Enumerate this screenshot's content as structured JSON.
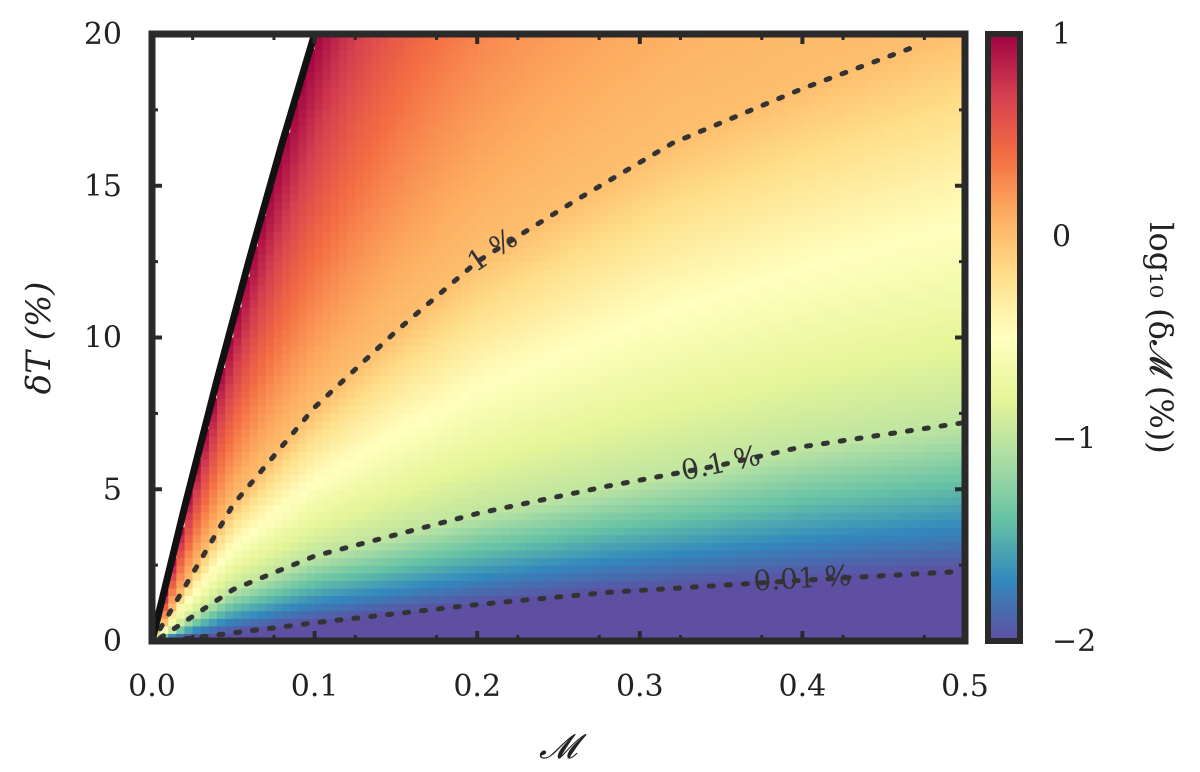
{
  "chart_data": {
    "type": "heatmap",
    "title": "",
    "xlabel": "𝓜",
    "ylabel": "δT    (%)",
    "xlim": [
      0.0,
      0.5
    ],
    "ylim": [
      0,
      20
    ],
    "x_ticks": [
      "0.0",
      "0.1",
      "0.2",
      "0.3",
      "0.4",
      "0.5"
    ],
    "x_tick_values": [
      0.0,
      0.1,
      0.2,
      0.3,
      0.4,
      0.5
    ],
    "y_ticks": [
      "0",
      "5",
      "10",
      "15",
      "20"
    ],
    "y_tick_values": [
      0,
      5,
      10,
      15,
      20
    ],
    "colorbar": {
      "label": "log₁₀ (δ𝓜 (%))",
      "range": [
        -2,
        1
      ],
      "ticks": [
        "−2",
        "−1",
        "0",
        "1"
      ],
      "tick_values": [
        -2,
        -1,
        0,
        1
      ],
      "colormap": "Spectral_r",
      "colors": [
        "#5e4fa2",
        "#3288bd",
        "#66c2a5",
        "#abdda4",
        "#e6f598",
        "#ffffbf",
        "#fee08b",
        "#fdae61",
        "#f46d43",
        "#d53e4f",
        "#9e0142"
      ]
    },
    "contours": [
      {
        "label": "1 %",
        "level": 0,
        "points": [
          [
            0.005,
            0.4
          ],
          [
            0.05,
            4.5
          ],
          [
            0.1,
            7.7
          ],
          [
            0.15,
            10.2
          ],
          [
            0.2,
            12.5
          ],
          [
            0.26,
            14.5
          ],
          [
            0.32,
            16.4
          ],
          [
            0.4,
            18.2
          ],
          [
            0.47,
            19.6
          ]
        ]
      },
      {
        "label": "0.1 %",
        "level": -1,
        "points": [
          [
            0.005,
            0.1
          ],
          [
            0.05,
            1.7
          ],
          [
            0.1,
            2.8
          ],
          [
            0.2,
            4.2
          ],
          [
            0.28,
            5.1
          ],
          [
            0.35,
            5.8
          ],
          [
            0.4,
            6.4
          ],
          [
            0.5,
            7.2
          ]
        ]
      },
      {
        "label": "0.01 %",
        "level": -2,
        "points": [
          [
            0.01,
            0.0
          ],
          [
            0.1,
            0.6
          ],
          [
            0.2,
            1.2
          ],
          [
            0.28,
            1.6
          ],
          [
            0.34,
            1.8
          ],
          [
            0.4,
            2.0
          ],
          [
            0.5,
            2.3
          ]
        ]
      }
    ],
    "excluded_region_boundary": [
      [
        0.0,
        0.0
      ],
      [
        0.02,
        4.4
      ],
      [
        0.04,
        8.6
      ],
      [
        0.06,
        12.6
      ],
      [
        0.08,
        16.4
      ],
      [
        0.1,
        20.0
      ]
    ],
    "grid": false,
    "legend": "none"
  }
}
